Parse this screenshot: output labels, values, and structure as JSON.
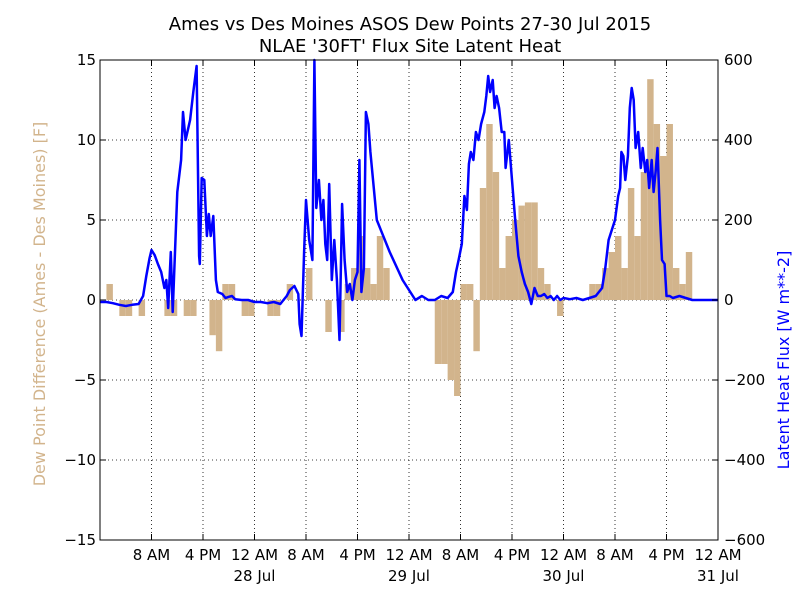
{
  "chart_data": {
    "type": "bar+line",
    "title": "Ames vs Des Moines ASOS Dew Points 27-30 Jul 2015",
    "subtitle": "NLAE '30FT' Flux Site Latent Heat",
    "ylabel_left": "Dew Point Difference (Ames - Des Moines) [F]",
    "ylabel_right": "Latent Heat Flux [W m**-2]",
    "colors": {
      "bars": "#d2b48c",
      "line": "#0000ff",
      "left_axis_label": "#d2b48c",
      "right_axis_label": "#0000ff"
    },
    "grid": true,
    "x_range_hours": [
      0,
      96
    ],
    "ylim_left": [
      -15,
      15
    ],
    "ylim_right": [
      -600,
      600
    ],
    "x_ticks": [
      {
        "h": 8,
        "label": "8 AM",
        "date": ""
      },
      {
        "h": 16,
        "label": "4 PM",
        "date": ""
      },
      {
        "h": 24,
        "label": "12 AM",
        "date": "28 Jul"
      },
      {
        "h": 32,
        "label": "8 AM",
        "date": ""
      },
      {
        "h": 40,
        "label": "4 PM",
        "date": ""
      },
      {
        "h": 48,
        "label": "12 AM",
        "date": "29 Jul"
      },
      {
        "h": 56,
        "label": "8 AM",
        "date": ""
      },
      {
        "h": 64,
        "label": "4 PM",
        "date": ""
      },
      {
        "h": 72,
        "label": "12 AM",
        "date": "30 Jul"
      },
      {
        "h": 80,
        "label": "8 AM",
        "date": ""
      },
      {
        "h": 88,
        "label": "4 PM",
        "date": ""
      },
      {
        "h": 96,
        "label": "12 AM",
        "date": "31 Jul"
      }
    ],
    "y_ticks_left": [
      "15",
      "10",
      "5",
      "0",
      "−5",
      "−10",
      "−15"
    ],
    "y_ticks_right": [
      "600",
      "400",
      "200",
      "0",
      "−200",
      "−400",
      "−600"
    ],
    "dew_point_difference": [
      {
        "h": 1.5,
        "v": 1
      },
      {
        "h": 2.5,
        "v": 0
      },
      {
        "h": 3.5,
        "v": -1
      },
      {
        "h": 4.5,
        "v": -1
      },
      {
        "h": 5.5,
        "v": 0
      },
      {
        "h": 6.5,
        "v": -1
      },
      {
        "h": 7.5,
        "v": 0
      },
      {
        "h": 8.5,
        "v": 0
      },
      {
        "h": 9.5,
        "v": 0
      },
      {
        "h": 10.5,
        "v": -1
      },
      {
        "h": 11.5,
        "v": -1
      },
      {
        "h": 12.5,
        "v": 0
      },
      {
        "h": 13.5,
        "v": -1
      },
      {
        "h": 14.5,
        "v": -1
      },
      {
        "h": 15.5,
        "v": 0
      },
      {
        "h": 16.5,
        "v": 0
      },
      {
        "h": 17.5,
        "v": -2.2
      },
      {
        "h": 18.5,
        "v": -3.2
      },
      {
        "h": 19.5,
        "v": 1
      },
      {
        "h": 20.5,
        "v": 1
      },
      {
        "h": 21.5,
        "v": 0
      },
      {
        "h": 22.5,
        "v": -1
      },
      {
        "h": 23.5,
        "v": -1
      },
      {
        "h": 24.5,
        "v": 0
      },
      {
        "h": 25.5,
        "v": 0
      },
      {
        "h": 26.5,
        "v": -1
      },
      {
        "h": 27.5,
        "v": -1
      },
      {
        "h": 28.5,
        "v": 0
      },
      {
        "h": 29.5,
        "v": 1
      },
      {
        "h": 30.5,
        "v": 0
      },
      {
        "h": 31.5,
        "v": 0
      },
      {
        "h": 32.5,
        "v": 2
      },
      {
        "h": 33.5,
        "v": 0
      },
      {
        "h": 34.5,
        "v": 0
      },
      {
        "h": 35.5,
        "v": -2
      },
      {
        "h": 36.5,
        "v": 0
      },
      {
        "h": 37.5,
        "v": -2
      },
      {
        "h": 38.5,
        "v": 1
      },
      {
        "h": 39.5,
        "v": 2
      },
      {
        "h": 40.5,
        "v": 4
      },
      {
        "h": 41.5,
        "v": 2
      },
      {
        "h": 42.5,
        "v": 1
      },
      {
        "h": 43.5,
        "v": 4
      },
      {
        "h": 44.5,
        "v": 2
      },
      {
        "h": 45.5,
        "v": 0
      },
      {
        "h": 46.5,
        "v": 0
      },
      {
        "h": 47.5,
        "v": 0
      },
      {
        "h": 48.5,
        "v": 0
      },
      {
        "h": 49.5,
        "v": 0
      },
      {
        "h": 50.5,
        "v": 0
      },
      {
        "h": 51.5,
        "v": 0
      },
      {
        "h": 52.5,
        "v": -4
      },
      {
        "h": 53.5,
        "v": -4
      },
      {
        "h": 54.5,
        "v": -5
      },
      {
        "h": 55.5,
        "v": -6
      },
      {
        "h": 56.5,
        "v": 1
      },
      {
        "h": 57.5,
        "v": 1
      },
      {
        "h": 58.5,
        "v": -3.2
      },
      {
        "h": 59.5,
        "v": 7
      },
      {
        "h": 60.5,
        "v": 11
      },
      {
        "h": 61.5,
        "v": 8
      },
      {
        "h": 62.5,
        "v": 2
      },
      {
        "h": 63.5,
        "v": 4
      },
      {
        "h": 64.5,
        "v": 5
      },
      {
        "h": 65.5,
        "v": 5.9
      },
      {
        "h": 66.5,
        "v": 6.1
      },
      {
        "h": 67.5,
        "v": 6.1
      },
      {
        "h": 68.5,
        "v": 2
      },
      {
        "h": 69.5,
        "v": 1
      },
      {
        "h": 70.5,
        "v": 0
      },
      {
        "h": 71.5,
        "v": -1
      },
      {
        "h": 72.5,
        "v": 0
      },
      {
        "h": 73.5,
        "v": 0
      },
      {
        "h": 74.5,
        "v": 0
      },
      {
        "h": 75.5,
        "v": 0
      },
      {
        "h": 76.5,
        "v": 1
      },
      {
        "h": 77.5,
        "v": 1
      },
      {
        "h": 78.5,
        "v": 2
      },
      {
        "h": 79.5,
        "v": 3
      },
      {
        "h": 80.5,
        "v": 4
      },
      {
        "h": 81.5,
        "v": 2
      },
      {
        "h": 82.5,
        "v": 7
      },
      {
        "h": 83.5,
        "v": 4
      },
      {
        "h": 84.5,
        "v": 8
      },
      {
        "h": 85.5,
        "v": 13.8
      },
      {
        "h": 86.5,
        "v": 11
      },
      {
        "h": 87.5,
        "v": 9
      },
      {
        "h": 88.5,
        "v": 11
      },
      {
        "h": 89.5,
        "v": 2
      },
      {
        "h": 90.5,
        "v": 1
      },
      {
        "h": 91.5,
        "v": 3
      }
    ],
    "latent_heat_flux": [
      [
        0,
        -5
      ],
      [
        1,
        -5
      ],
      [
        2,
        -8
      ],
      [
        3,
        -12
      ],
      [
        4,
        -15
      ],
      [
        5,
        -12
      ],
      [
        6,
        -10
      ],
      [
        6.7,
        10
      ],
      [
        7.2,
        60
      ],
      [
        7.7,
        105
      ],
      [
        8.0,
        125
      ],
      [
        8.5,
        112
      ],
      [
        9.0,
        90
      ],
      [
        9.5,
        70
      ],
      [
        10.0,
        30
      ],
      [
        10.3,
        50
      ],
      [
        10.6,
        -20
      ],
      [
        11.0,
        120
      ],
      [
        11.3,
        -30
      ],
      [
        12.0,
        270
      ],
      [
        12.6,
        350
      ],
      [
        12.9,
        470
      ],
      [
        13.3,
        400
      ],
      [
        14.0,
        450
      ],
      [
        14.5,
        520
      ],
      [
        15.0,
        585
      ],
      [
        15.4,
        110
      ],
      [
        15.5,
        90
      ],
      [
        15.8,
        305
      ],
      [
        16.2,
        300
      ],
      [
        16.6,
        160
      ],
      [
        16.9,
        215
      ],
      [
        17.2,
        160
      ],
      [
        17.6,
        210
      ],
      [
        18.0,
        50
      ],
      [
        18.3,
        20
      ],
      [
        19.0,
        15
      ],
      [
        19.5,
        5
      ],
      [
        20.0,
        8
      ],
      [
        20.5,
        10
      ],
      [
        21,
        2
      ],
      [
        22,
        0
      ],
      [
        23,
        0
      ],
      [
        24,
        -5
      ],
      [
        25,
        -5
      ],
      [
        26,
        -8
      ],
      [
        27,
        -5
      ],
      [
        28,
        -10
      ],
      [
        29,
        10
      ],
      [
        29.5,
        25
      ],
      [
        30.2,
        35
      ],
      [
        30.8,
        15
      ],
      [
        31.0,
        -60
      ],
      [
        31.3,
        -90
      ],
      [
        31.7,
        120
      ],
      [
        32.0,
        250
      ],
      [
        32.5,
        150
      ],
      [
        33.0,
        100
      ],
      [
        33.3,
        600
      ],
      [
        33.6,
        230
      ],
      [
        34.0,
        300
      ],
      [
        34.4,
        200
      ],
      [
        34.7,
        250
      ],
      [
        35.0,
        140
      ],
      [
        35.3,
        100
      ],
      [
        35.6,
        290
      ],
      [
        36.0,
        50
      ],
      [
        36.4,
        150
      ],
      [
        36.8,
        50
      ],
      [
        37.2,
        -100
      ],
      [
        37.6,
        240
      ],
      [
        38.0,
        100
      ],
      [
        38.4,
        20
      ],
      [
        38.8,
        40
      ],
      [
        39.2,
        0
      ],
      [
        39.6,
        50
      ],
      [
        40.0,
        70
      ],
      [
        40.3,
        350
      ],
      [
        40.6,
        20
      ],
      [
        41.0,
        80
      ],
      [
        41.3,
        470
      ],
      [
        41.7,
        440
      ],
      [
        42.0,
        370
      ],
      [
        43.0,
        200
      ],
      [
        45,
        120
      ],
      [
        47,
        50
      ],
      [
        49,
        0
      ],
      [
        50,
        10
      ],
      [
        51,
        0
      ],
      [
        52,
        0
      ],
      [
        53,
        10
      ],
      [
        54,
        5
      ],
      [
        54.8,
        20
      ],
      [
        55.3,
        70
      ],
      [
        55.7,
        100
      ],
      [
        56.2,
        140
      ],
      [
        56.6,
        260
      ],
      [
        57.0,
        225
      ],
      [
        57.3,
        340
      ],
      [
        57.6,
        370
      ],
      [
        58.0,
        350
      ],
      [
        58.4,
        420
      ],
      [
        58.8,
        400
      ],
      [
        59.2,
        440
      ],
      [
        59.7,
        470
      ],
      [
        60.0,
        510
      ],
      [
        60.3,
        560
      ],
      [
        60.6,
        520
      ],
      [
        61.0,
        550
      ],
      [
        61.3,
        480
      ],
      [
        61.6,
        510
      ],
      [
        62.0,
        480
      ],
      [
        62.4,
        420
      ],
      [
        62.8,
        420
      ],
      [
        63.0,
        330
      ],
      [
        63.5,
        400
      ],
      [
        64.0,
        300
      ],
      [
        64.5,
        200
      ],
      [
        65.0,
        110
      ],
      [
        65.5,
        70
      ],
      [
        66.0,
        40
      ],
      [
        66.5,
        20
      ],
      [
        67.0,
        -10
      ],
      [
        67.5,
        30
      ],
      [
        68.0,
        10
      ],
      [
        68.5,
        10
      ],
      [
        69.0,
        15
      ],
      [
        69.5,
        5
      ],
      [
        70.0,
        10
      ],
      [
        70.5,
        0
      ],
      [
        71.0,
        10
      ],
      [
        71.5,
        0
      ],
      [
        72.0,
        5
      ],
      [
        73,
        2
      ],
      [
        74,
        5
      ],
      [
        75,
        0
      ],
      [
        76,
        5
      ],
      [
        77,
        10
      ],
      [
        78,
        30
      ],
      [
        78.5,
        80
      ],
      [
        79.0,
        150
      ],
      [
        79.5,
        175
      ],
      [
        80.0,
        200
      ],
      [
        80.5,
        260
      ],
      [
        80.8,
        280
      ],
      [
        81.0,
        370
      ],
      [
        81.3,
        360
      ],
      [
        81.6,
        300
      ],
      [
        82.0,
        360
      ],
      [
        82.3,
        480
      ],
      [
        82.6,
        530
      ],
      [
        82.9,
        500
      ],
      [
        83.2,
        380
      ],
      [
        83.6,
        420
      ],
      [
        84.0,
        330
      ],
      [
        84.3,
        380
      ],
      [
        84.7,
        320
      ],
      [
        85.0,
        350
      ],
      [
        85.3,
        280
      ],
      [
        85.7,
        350
      ],
      [
        86.0,
        270
      ],
      [
        86.3,
        320
      ],
      [
        86.6,
        380
      ],
      [
        87.0,
        200
      ],
      [
        87.3,
        100
      ],
      [
        87.7,
        90
      ],
      [
        88.0,
        10
      ],
      [
        88.5,
        10
      ],
      [
        89.0,
        5
      ],
      [
        90.0,
        10
      ],
      [
        91.0,
        5
      ],
      [
        92.0,
        0
      ],
      [
        93,
        0
      ],
      [
        94.0,
        0
      ],
      [
        95,
        0
      ],
      [
        96,
        0
      ]
    ]
  }
}
